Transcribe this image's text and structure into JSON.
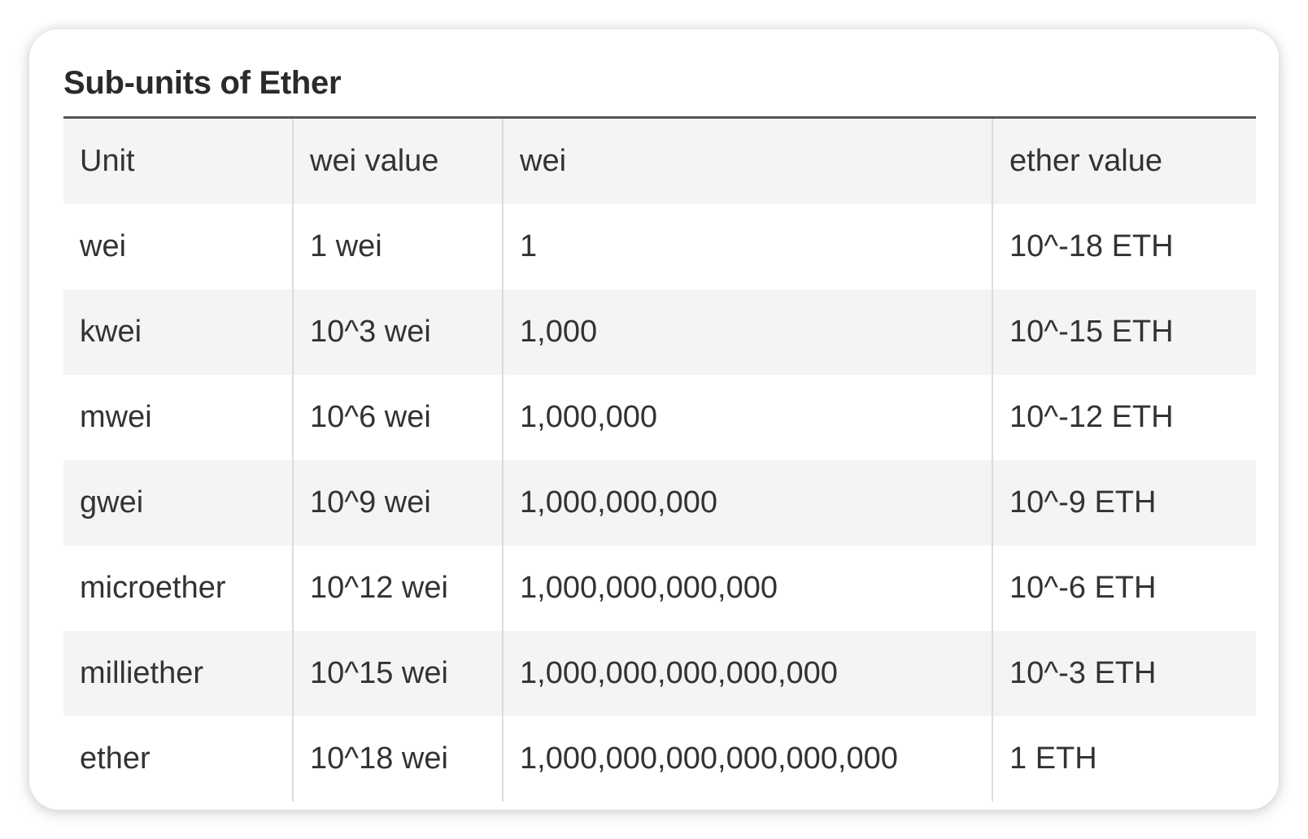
{
  "title": "Sub-units of Ether",
  "table": {
    "headers": [
      "Unit",
      "wei value",
      "wei",
      "ether value"
    ],
    "rows": [
      [
        "wei",
        "1 wei",
        "1",
        "10^-18 ETH"
      ],
      [
        "kwei",
        "10^3 wei",
        "1,000",
        "10^-15 ETH"
      ],
      [
        "mwei",
        "10^6 wei",
        "1,000,000",
        "10^-12 ETH"
      ],
      [
        "gwei",
        "10^9 wei",
        "1,000,000,000",
        "10^-9 ETH"
      ],
      [
        "microether",
        "10^12 wei",
        "1,000,000,000,000",
        "10^-6 ETH"
      ],
      [
        "milliether",
        "10^15 wei",
        "1,000,000,000,000,000",
        "10^-3 ETH"
      ],
      [
        "ether",
        "10^18 wei",
        "1,000,000,000,000,000,000",
        "1 ETH"
      ]
    ]
  },
  "colors": {
    "background": "#ffffff",
    "stripe": "#f4f4f4",
    "text": "#333333",
    "title": "#2a2a2a",
    "rule": "#555555",
    "divider": "#dcdcdc"
  }
}
